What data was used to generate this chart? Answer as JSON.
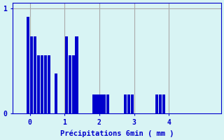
{
  "xlabel": "Précipitations 6min ( mm )",
  "bar_color": "#0000cc",
  "background_color": "#d8f4f4",
  "grid_color": "#aaaaaa",
  "axis_color": "#0000cc",
  "tick_color": "#0000cc",
  "label_color": "#0000cc",
  "xlim": [
    -0.5,
    5.5
  ],
  "ylim": [
    0,
    1.05
  ],
  "yticks": [
    0,
    1
  ],
  "xticks": [
    0,
    1,
    2,
    3,
    4
  ],
  "bars_x": [
    -0.15,
    -0.05,
    0.05,
    0.15,
    0.25,
    0.35,
    0.45,
    0.65,
    1.05,
    1.15,
    1.25,
    1.35,
    1.85,
    1.95,
    2.05,
    2.15,
    2.25,
    2.75,
    2.85,
    2.95,
    3.65,
    3.75,
    3.85
  ],
  "bars_h": [
    0.92,
    0.73,
    0.73,
    0.55,
    0.55,
    0.55,
    0.55,
    0.38,
    0.73,
    0.55,
    0.55,
    0.73,
    0.18,
    0.18,
    0.18,
    0.18,
    0.18,
    0.18,
    0.18,
    0.18,
    0.18,
    0.18,
    0.18
  ],
  "bar_width": 0.09
}
